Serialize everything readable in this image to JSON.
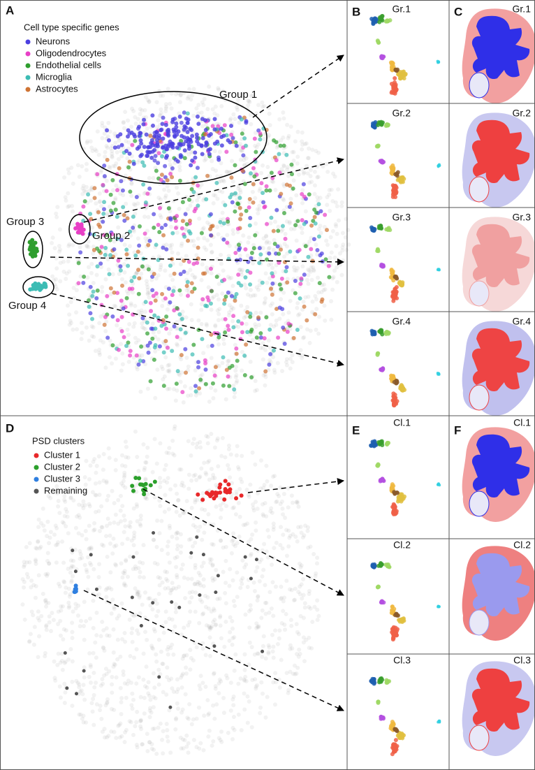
{
  "panels": [
    {
      "letter": "A",
      "legend_title": "Cell type specific genes",
      "legend": [
        {
          "label": "Neurons",
          "color": "#4b3fe0"
        },
        {
          "label": "Oligodendrocytes",
          "color": "#e83fc6"
        },
        {
          "label": "Endothelial cells",
          "color": "#2e9e2e"
        },
        {
          "label": "Microglia",
          "color": "#3cbcb4"
        },
        {
          "label": "Astrocytes",
          "color": "#cf7434"
        }
      ],
      "groups": [
        "Group 1",
        "Group 2",
        "Group 3",
        "Group 4"
      ]
    },
    {
      "letter": "B",
      "labels": [
        "Gr.1",
        "Gr.2",
        "Gr.3",
        "Gr.4"
      ]
    },
    {
      "letter": "C",
      "labels": [
        "Gr.1",
        "Gr.2",
        "Gr.3",
        "Gr.4"
      ]
    },
    {
      "letter": "D",
      "legend_title": "PSD clusters",
      "legend": [
        {
          "label": "Cluster 1",
          "color": "#e8282a"
        },
        {
          "label": "Cluster 2",
          "color": "#2ca02c"
        },
        {
          "label": "Cluster 3",
          "color": "#2f7fe0"
        },
        {
          "label": "Remaining",
          "color": "#555555"
        }
      ]
    },
    {
      "letter": "E",
      "labels": [
        "Cl.1",
        "Cl.2",
        "Cl.3"
      ]
    },
    {
      "letter": "F",
      "labels": [
        "Cl.1",
        "Cl.2",
        "Cl.3"
      ]
    }
  ]
}
